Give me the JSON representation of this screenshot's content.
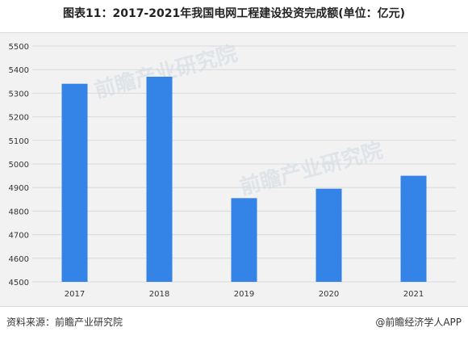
{
  "title": "图表11：2017-2021年我国电网工程建设投资完成额(单位：亿元)",
  "source": "资料来源：前瞻产业研究院",
  "brand": "@前瞻经济学人APP",
  "watermark": "前瞻产业研究院",
  "colors": {
    "bar": "#3384e6",
    "grid": "#d9d9d9",
    "background": "#f2f2f2"
  },
  "chart_data": {
    "type": "bar",
    "categories": [
      "2017",
      "2018",
      "2019",
      "2020",
      "2021"
    ],
    "values": [
      5340,
      5370,
      4855,
      4895,
      4950
    ],
    "ylim": [
      4500,
      5500
    ],
    "yticks": [
      4500,
      4600,
      4700,
      4800,
      4900,
      5000,
      5100,
      5200,
      5300,
      5400,
      5500
    ],
    "grid": true,
    "xlabel": "",
    "ylabel": ""
  }
}
